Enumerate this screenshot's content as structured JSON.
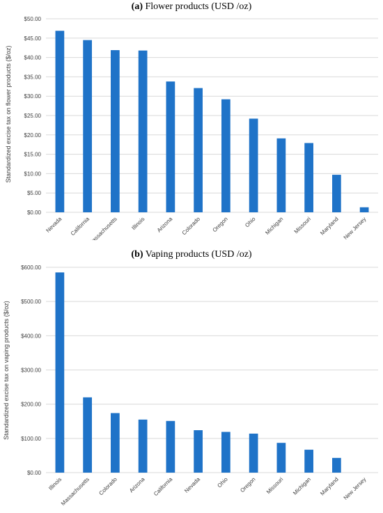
{
  "chart_data": [
    {
      "type": "bar",
      "title_tag": "(a)",
      "title": "Flower products (USD /oz)",
      "ylabel": "Standardized excise tax on flower products ($/oz)",
      "xlabel": "",
      "categories": [
        "Nevada",
        "California",
        "Massachusetts",
        "Illinois",
        "Arizona",
        "Colorado",
        "Oregon",
        "Ohio",
        "Michigan",
        "Missouri",
        "Maryland",
        "New Jersey"
      ],
      "values": [
        46.9,
        44.5,
        41.9,
        41.8,
        33.8,
        32.1,
        29.2,
        24.2,
        19.1,
        17.9,
        9.7,
        1.3
      ],
      "ylim": [
        0,
        50
      ],
      "yticks": [
        0,
        5,
        10,
        15,
        20,
        25,
        30,
        35,
        40,
        45,
        50
      ],
      "ytick_labels": [
        "$0.00",
        "$5.00",
        "$10.00",
        "$15.00",
        "$20.00",
        "$25.00",
        "$30.00",
        "$35.00",
        "$40.00",
        "$45.00",
        "$50.00"
      ],
      "grid": true,
      "bar_color": "#1f73c8",
      "grid_color": "#d9d9d9"
    },
    {
      "type": "bar",
      "title_tag": "(b)",
      "title": "Vaping products (USD /oz)",
      "ylabel": "Standardized excise tax on vaping products ($/oz)",
      "xlabel": "",
      "categories": [
        "Illinois",
        "Massachusetts",
        "Colorado",
        "Arizona",
        "California",
        "Nevada",
        "Ohio",
        "Oregon",
        "Missouri",
        "Michigan",
        "Maryland",
        "New Jersey"
      ],
      "values": [
        585,
        220,
        174,
        155,
        151,
        124,
        119,
        114,
        87,
        67,
        43,
        0
      ],
      "ylim": [
        0,
        600
      ],
      "yticks": [
        0,
        100,
        200,
        300,
        400,
        500,
        600
      ],
      "ytick_labels": [
        "$0.00",
        "$100.00",
        "$200.00",
        "$300.00",
        "$400.00",
        "$500.00",
        "$600.00"
      ],
      "grid": true,
      "bar_color": "#1f73c8",
      "grid_color": "#d9d9d9"
    }
  ]
}
